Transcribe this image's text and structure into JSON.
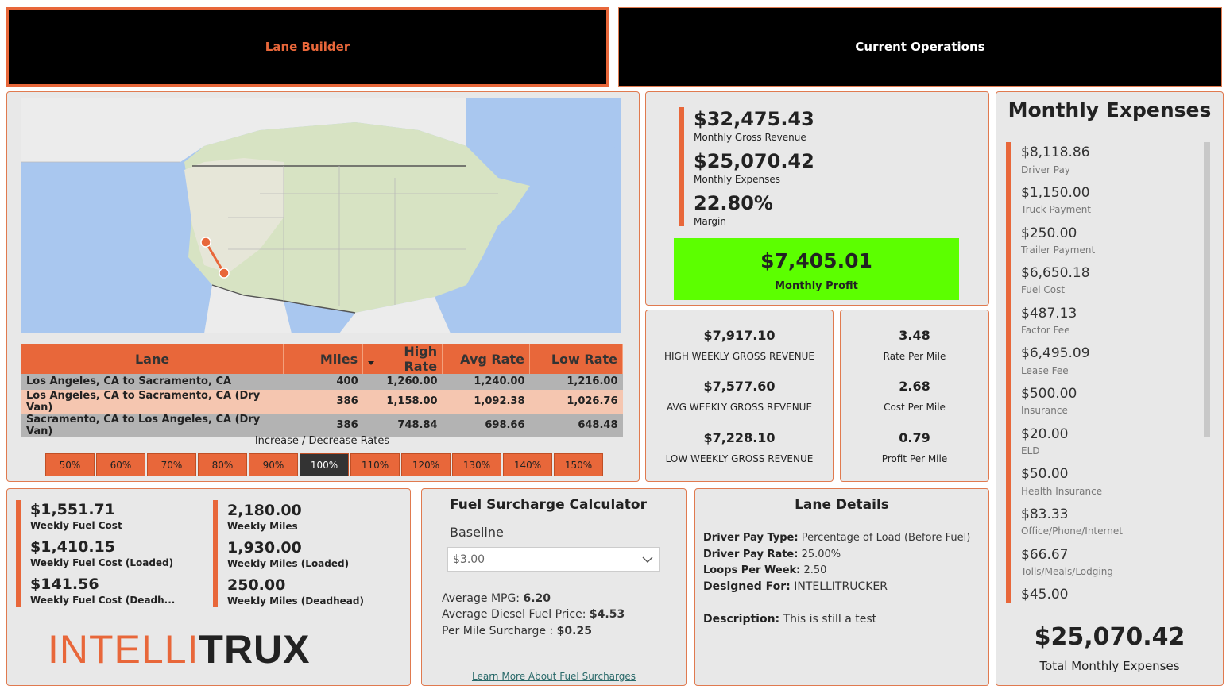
{
  "nav": {
    "lane_builder": "Lane Builder",
    "current_operations": "Current Operations"
  },
  "lane_table": {
    "headers": [
      "Lane",
      "Miles",
      "High Rate",
      "Avg Rate",
      "Low Rate"
    ],
    "rows": [
      [
        "Los Angeles, CA to Sacramento, CA",
        "400",
        "1,260.00",
        "1,240.00",
        "1,216.00"
      ],
      [
        "Los Angeles, CA to Sacramento, CA (Dry Van)",
        "386",
        "1,158.00",
        "1,092.38",
        "1,026.76"
      ],
      [
        "Sacramento, CA to Los Angeles, CA (Dry Van)",
        "386",
        "748.84",
        "698.66",
        "648.48"
      ]
    ]
  },
  "rates": {
    "title": "Increase / Decrease Rates",
    "options": [
      "50%",
      "60%",
      "70%",
      "80%",
      "90%",
      "100%",
      "110%",
      "120%",
      "130%",
      "140%",
      "150%"
    ],
    "selected": "100%"
  },
  "summary": {
    "gross_value": "$32,475.43",
    "gross_label": "Monthly Gross Revenue",
    "expenses_value": "$25,070.42",
    "expenses_label": "Monthly Expenses",
    "margin_value": "22.80%",
    "margin_label": "Margin",
    "profit_value": "$7,405.01",
    "profit_label": "Monthly Profit",
    "profit_color": "#5cff00"
  },
  "weekly": {
    "high_value": "$7,917.10",
    "high_label": "HIGH WEEKLY GROSS REVENUE",
    "avg_value": "$7,577.60",
    "avg_label": "AVG WEEKLY GROSS REVENUE",
    "low_value": "$7,228.10",
    "low_label": "LOW WEEKLY GROSS REVENUE"
  },
  "per_mile": {
    "rate_value": "3.48",
    "rate_label": "Rate Per Mile",
    "cost_value": "2.68",
    "cost_label": "Cost Per Mile",
    "profit_value": "0.79",
    "profit_label": "Profit Per Mile"
  },
  "expenses": {
    "title": "Monthly Expenses",
    "items": [
      {
        "value": "$8,118.86",
        "label": "Driver Pay"
      },
      {
        "value": "$1,150.00",
        "label": "Truck Payment"
      },
      {
        "value": "$250.00",
        "label": "Trailer Payment"
      },
      {
        "value": "$6,650.18",
        "label": "Fuel Cost"
      },
      {
        "value": "$487.13",
        "label": "Factor Fee"
      },
      {
        "value": "$6,495.09",
        "label": "Lease Fee"
      },
      {
        "value": "$500.00",
        "label": "Insurance"
      },
      {
        "value": "$20.00",
        "label": "ELD"
      },
      {
        "value": "$50.00",
        "label": "Health Insurance"
      },
      {
        "value": "$83.33",
        "label": "Office/Phone/Internet"
      },
      {
        "value": "$66.67",
        "label": "Tolls/Meals/Lodging"
      },
      {
        "value": "$45.00",
        "label": ""
      }
    ],
    "total_value": "$25,070.42",
    "total_label": "Total Monthly Expenses"
  },
  "fuel": {
    "weekly_cost": "$1,551.71",
    "weekly_cost_label": "Weekly Fuel Cost",
    "loaded_cost": "$1,410.15",
    "loaded_cost_label": "Weekly Fuel Cost (Loaded)",
    "deadhead_cost": "$141.56",
    "deadhead_cost_label": "Weekly Fuel Cost (Deadh...",
    "weekly_miles": "2,180.00",
    "weekly_miles_label": "Weekly Miles",
    "loaded_miles": "1,930.00",
    "loaded_miles_label": "Weekly Miles (Loaded)",
    "deadhead_miles": "250.00",
    "deadhead_miles_label": "Weekly Miles (Deadhead)"
  },
  "logo": {
    "part1": "INTELLI",
    "part2": "TRUX"
  },
  "surcharge": {
    "title": "Fuel Surcharge Calculator",
    "baseline_label": "Baseline",
    "baseline_value": "$3.00",
    "mpg_label": "Average MPG:",
    "mpg_value": "6.20",
    "diesel_label": "Average Diesel Fuel Price:",
    "diesel_value": "$4.53",
    "surcharge_label": "Per Mile Surcharge :",
    "surcharge_value": "$0.25",
    "link": "Learn More About Fuel Surcharges"
  },
  "lane_details": {
    "title": "Lane Details",
    "pay_type_label": "Driver Pay Type:",
    "pay_type_value": "Percentage of Load (Before Fuel)",
    "pay_rate_label": "Driver Pay Rate:",
    "pay_rate_value": "25.00%",
    "loops_label": "Loops Per Week:",
    "loops_value": "2.50",
    "designed_label": "Designed For:",
    "designed_value": "INTELLITRUCKER",
    "desc_label": "Description:",
    "desc_value": "This is still a test"
  },
  "colors": {
    "accent": "#e8673a",
    "profit": "#5cff00",
    "panel": "#e8e8e8"
  }
}
